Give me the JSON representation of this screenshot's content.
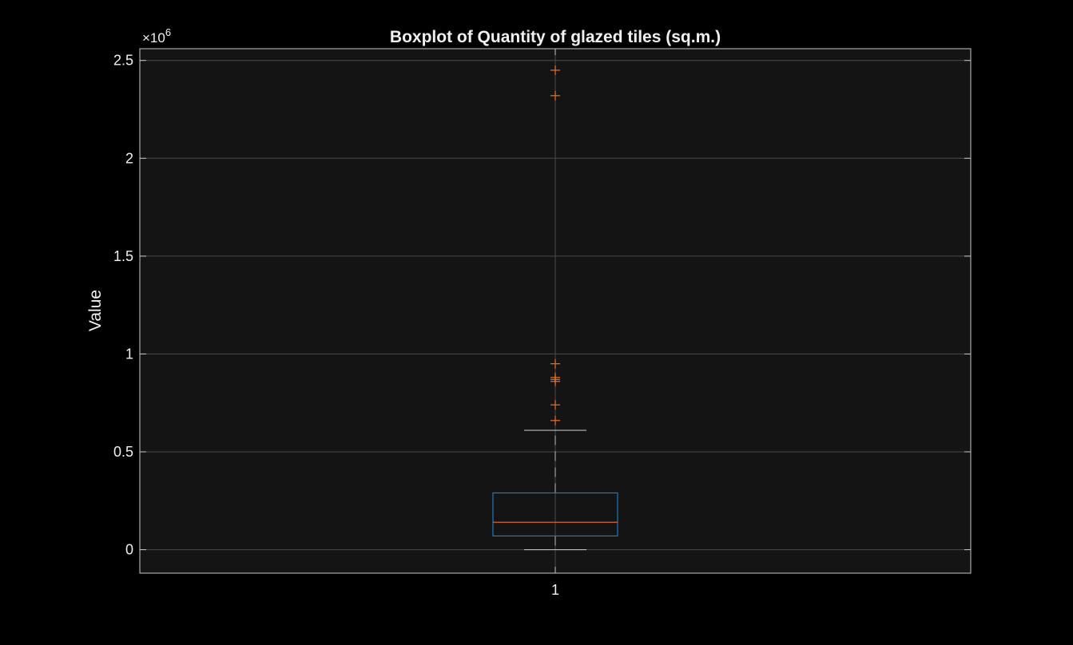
{
  "chart_data": {
    "type": "box",
    "title": "Boxplot of Quantity of glazed tiles (sq.m.)",
    "xlabel": "",
    "ylabel": "Value",
    "y_exponent_base": "×10",
    "y_exponent_power": "6",
    "ylim": [
      -0.12,
      2.56
    ],
    "yticks": [
      0,
      0.5,
      1,
      1.5,
      2,
      2.5
    ],
    "ytick_labels": [
      "0",
      "0.5",
      "1",
      "1.5",
      "2",
      "2.5"
    ],
    "categories": [
      "1"
    ],
    "grid": true,
    "box": {
      "category": "1",
      "whisker_low": 0,
      "q1": 0.07,
      "median": 0.14,
      "q3": 0.29,
      "whisker_high": 0.61
    },
    "outliers": [
      0.66,
      0.74,
      0.86,
      0.87,
      0.88,
      0.95,
      2.32,
      2.45
    ],
    "colors": {
      "background": "#000000",
      "axes_bg": "#141414",
      "axis": "#c8c8c8",
      "grid": "#4a4a4a",
      "box": "#1f78c0",
      "median": "#d9661f",
      "outlier": "#e8722a",
      "whisker": "#bbbbbb"
    }
  }
}
